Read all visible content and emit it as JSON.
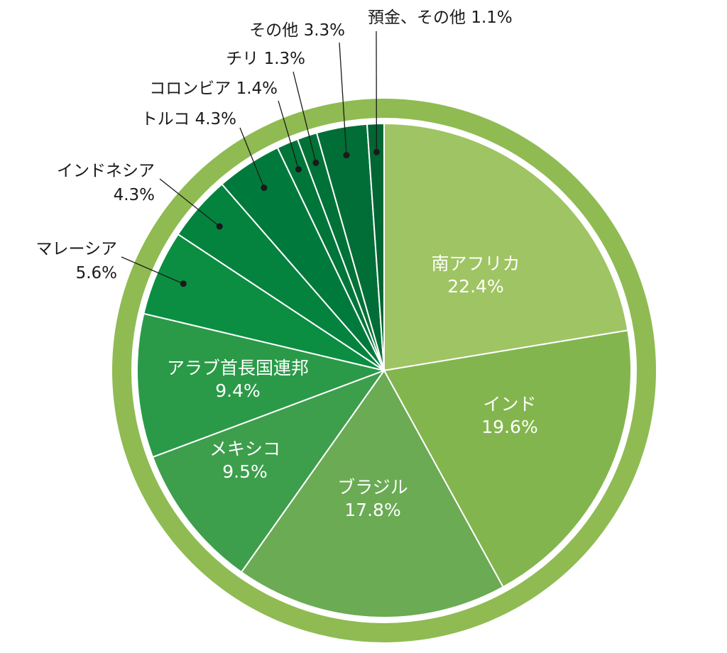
{
  "chart_data": {
    "type": "pie",
    "ring_color": "#8fbb52",
    "slices": [
      {
        "key": "south-africa",
        "label": "南アフリカ",
        "value_text": "22.4%",
        "value": 22.4,
        "color": "#9fc463",
        "position": "inside"
      },
      {
        "key": "india",
        "label": "インド",
        "value_text": "19.6%",
        "value": 19.6,
        "color": "#83b54e",
        "position": "inside"
      },
      {
        "key": "brazil",
        "label": "ブラジル",
        "value_text": "17.8%",
        "value": 17.8,
        "color": "#6aab54",
        "position": "inside"
      },
      {
        "key": "mexico",
        "label": "メキシコ",
        "value_text": "9.5%",
        "value": 9.5,
        "color": "#3d9e4c",
        "position": "inside"
      },
      {
        "key": "uae",
        "label": "アラブ首長国連邦",
        "value_text": "9.4%",
        "value": 9.4,
        "color": "#2a9a48",
        "position": "inside"
      },
      {
        "key": "malaysia",
        "label": "マレーシア",
        "value_text": "5.6%",
        "value": 5.6,
        "color": "#0b8e42",
        "position": "outside"
      },
      {
        "key": "indonesia",
        "label": "インドネシア",
        "value_text": "4.3%",
        "value": 4.3,
        "color": "#04833f",
        "position": "outside"
      },
      {
        "key": "turkey",
        "label": "トルコ",
        "value_text": "4.3%",
        "value": 4.3,
        "color": "#007a3c",
        "position": "outside"
      },
      {
        "key": "colombia",
        "label": "コロンビア",
        "value_text": "1.4%",
        "value": 1.4,
        "color": "#007539",
        "position": "outside"
      },
      {
        "key": "chile",
        "label": "チリ",
        "value_text": "1.3%",
        "value": 1.3,
        "color": "#007137",
        "position": "outside"
      },
      {
        "key": "others",
        "label": "その他",
        "value_text": "3.3%",
        "value": 3.3,
        "color": "#006e36",
        "position": "outside"
      },
      {
        "key": "deposits",
        "label": "預金、その他",
        "value_text": "1.1%",
        "value": 1.1,
        "color": "#006633",
        "position": "outside"
      }
    ]
  }
}
